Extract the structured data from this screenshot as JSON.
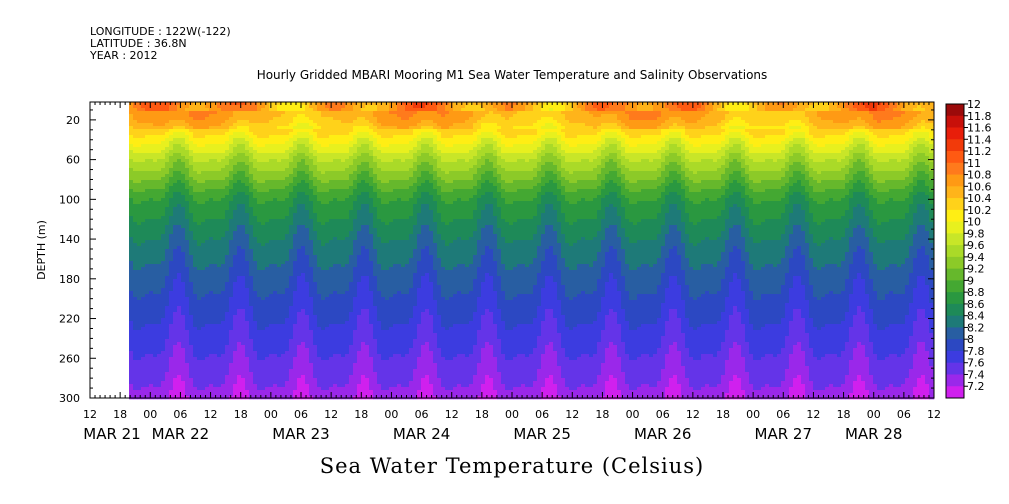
{
  "header": {
    "longitude": "LONGITUDE : 122W(-122)",
    "latitude": "LATITUDE : 36.8N",
    "year": "YEAR : 2012"
  },
  "title": "Hourly Gridded MBARI Mooring M1 Sea Water Temperature and Salinity Observations",
  "footer": "Sea Water Temperature (Celsius)",
  "chart_data": {
    "type": "heatmap",
    "ylabel": "DEPTH (m)",
    "y_ticks": [
      20,
      60,
      100,
      140,
      180,
      220,
      260,
      300
    ],
    "ylim": [
      300,
      2
    ],
    "x_hour_ticks": [
      "12",
      "18",
      "00",
      "06",
      "12",
      "18",
      "00",
      "06",
      "12",
      "18",
      "00",
      "06",
      "12",
      "18",
      "00",
      "06",
      "12",
      "18",
      "00",
      "06",
      "12",
      "18",
      "00",
      "06",
      "12",
      "18",
      "00",
      "06",
      "12"
    ],
    "x_date_labels": [
      "MAR 21",
      "MAR 22",
      "MAR 23",
      "MAR 24",
      "MAR 25",
      "MAR 26",
      "MAR 27",
      "MAR 28"
    ],
    "data_start": "MAR 21 18:00",
    "colorbar_levels": [
      12,
      11.8,
      11.6,
      11.4,
      11.2,
      11,
      10.8,
      10.6,
      10.4,
      10.2,
      10,
      9.8,
      9.6,
      9.4,
      9.2,
      9,
      8.8,
      8.6,
      8.4,
      8.2,
      8,
      7.8,
      7.6,
      7.4,
      7.2
    ],
    "colorbar_colors": [
      "#9b0a0a",
      "#c8100a",
      "#e81e0a",
      "#f23a0a",
      "#ff5a12",
      "#ff7a1c",
      "#ff9a14",
      "#ffb41a",
      "#ffd21a",
      "#ffee14",
      "#e8f01e",
      "#c8e628",
      "#aada28",
      "#8cca28",
      "#66b82c",
      "#44a832",
      "#2a9840",
      "#1e8a58",
      "#1e7a78",
      "#285ea2",
      "#2c48c2",
      "#3c3ce0",
      "#6434e8",
      "#9a28ea",
      "#d020ee"
    ],
    "temperature_profile": {
      "surface": 10.9,
      "at_20m": 10.7,
      "at_60m": 9.7,
      "at_100m": 8.9,
      "at_140m": 8.5,
      "at_180m": 8.2,
      "at_220m": 7.95,
      "at_260m": 7.7,
      "at_300m": 7.45
    }
  }
}
